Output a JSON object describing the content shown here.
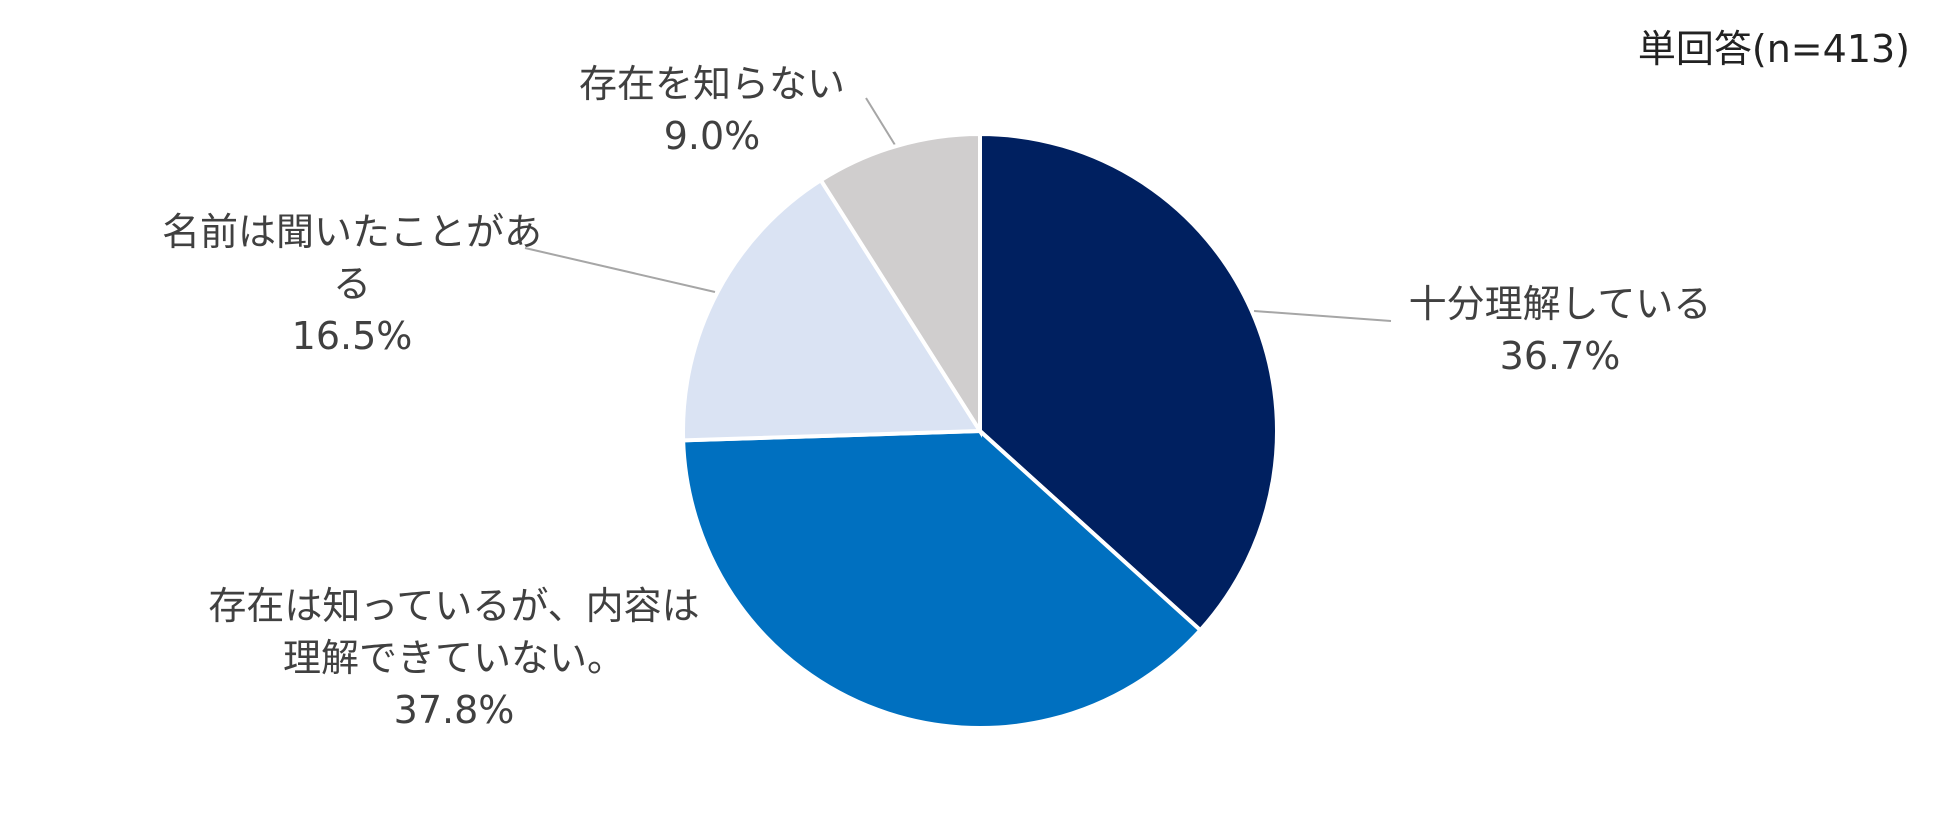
{
  "chart_data": {
    "type": "pie",
    "note": "単回答(n=413)",
    "categories": [
      "十分理解している",
      "存在は知っているが、内容は理解できていない。",
      "名前は聞いたことがある",
      "存在を知らない"
    ],
    "values": [
      36.7,
      37.8,
      16.5,
      9.0
    ],
    "value_labels": [
      "36.7%",
      "37.8%",
      "16.5%",
      "9.0%"
    ],
    "colors": [
      "#002060",
      "#0070c0",
      "#dae3f3",
      "#d0cece"
    ]
  }
}
